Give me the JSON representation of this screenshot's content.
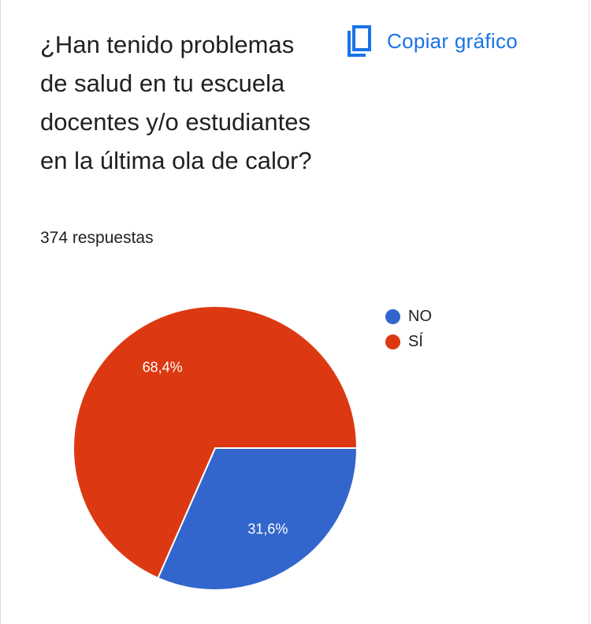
{
  "question": "¿Han tenido problemas de salud en tu escuela docentes y/o estudiantes en la última ola de calor?",
  "copy_button": {
    "label": "Copiar gráfico",
    "icon": "copy-icon"
  },
  "responses_count": "374 respuestas",
  "colors": {
    "accent": "#1a73e8",
    "no": "#3366cc",
    "si": "#dc3912"
  },
  "chart_data": {
    "type": "pie",
    "title": "¿Han tenido problemas de salud en tu escuela docentes y/o estudiantes en la última ola de calor?",
    "categories": [
      "NO",
      "SÍ"
    ],
    "values": [
      31.6,
      68.4
    ],
    "value_labels": [
      "31,6%",
      "68,4%"
    ],
    "colors": [
      "#3366cc",
      "#dc3912"
    ],
    "legend": "right"
  }
}
